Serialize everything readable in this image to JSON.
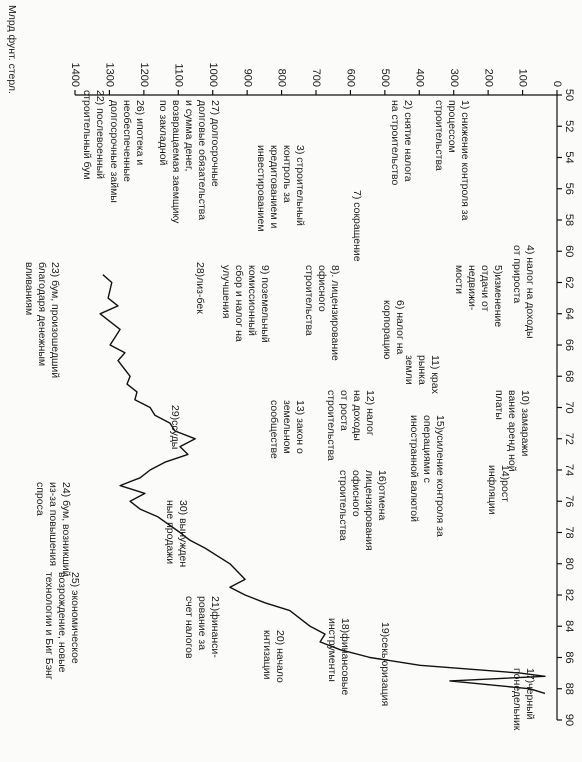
{
  "chart_data": {
    "type": "line",
    "y_axis_label": "Млрд фунт. стерл.",
    "x": [
      61.5,
      62,
      63,
      63.5,
      64,
      65,
      66,
      66.5,
      67,
      68,
      68.5,
      69,
      69.5,
      70,
      70.5,
      71,
      71.5,
      72,
      72.5,
      73,
      73.5,
      74,
      74.5,
      75,
      75.5,
      76,
      76.5,
      77,
      78,
      78.5,
      79,
      80,
      81,
      81.5,
      82,
      82.5,
      83,
      84,
      84.5,
      85,
      85.5,
      86,
      86.5,
      87,
      87.2,
      87.5,
      88,
      88.3
    ],
    "values": [
      1319,
      1293,
      1304,
      1275,
      1327,
      1269,
      1298,
      1255,
      1275,
      1240,
      1249,
      1220,
      1226,
      1182,
      1168,
      1124,
      1110,
      1051,
      1095,
      1072,
      1139,
      1182,
      1211,
      1269,
      1197,
      1240,
      1211,
      1159,
      1095,
      1066,
      1022,
      950,
      906,
      950,
      906,
      848,
      776,
      717,
      674,
      688,
      630,
      543,
      398,
      107,
      35,
      311,
      78,
      35
    ],
    "color": "#111111",
    "xlim": [
      50,
      90
    ],
    "xticks": [
      50,
      52,
      54,
      56,
      58,
      60,
      62,
      64,
      66,
      68,
      70,
      72,
      74,
      76,
      78,
      80,
      82,
      84,
      86,
      88,
      90
    ],
    "ylim": [
      0,
      1400
    ],
    "yticks": [
      0,
      100,
      200,
      300,
      400,
      500,
      600,
      700,
      800,
      900,
      1000,
      1100,
      1200,
      1300,
      1400
    ],
    "y_reversed": true,
    "annotations": [
      [
        "1) снижение контроля за",
        "процессом",
        "строительства"
      ],
      [
        "2) снятие налога",
        "на строительство"
      ],
      [
        "3) строительный",
        "контроль за",
        "кредитованием и",
        "инвестированием"
      ],
      [
        "4) налог на доходы",
        "от прироста"
      ],
      [
        "5)изменение",
        "отдачи от",
        "недвижи-",
        "мости"
      ],
      [
        "6) налог на",
        "корпорацию"
      ],
      [
        "7) сокращение"
      ],
      [
        "8). лицензирование",
        "офисного",
        "строительства"
      ],
      [
        "9) поземельный",
        "комиссионный",
        "сбор и налог на",
        "улучшения"
      ],
      [
        "10) замаражи",
        "вание аренд ной",
        "платы"
      ],
      [
        "11) крах",
        "рынка",
        "земли"
      ],
      [
        "12) налог",
        "на доходы",
        "от роста",
        "строительства"
      ],
      [
        "13) закон о",
        "земельном",
        "сообществе"
      ],
      [
        "14)рост",
        "инфляции"
      ],
      [
        "15)усиление контроля за",
        "операциями с",
        "иностранной валютой"
      ],
      [
        "16)отмена",
        "лицензирования",
        "офисного",
        "строительства"
      ],
      [
        "17)черный",
        "понедельник"
      ],
      [
        "18)финансовые",
        "инструменты"
      ],
      [
        "19)секьюризация"
      ],
      [
        "20) начало",
        "кнтизации"
      ],
      [
        "21)финанси-",
        "рование за",
        "счет налогов"
      ],
      [
        "22) послевоенный",
        "строительный бум"
      ],
      [
        "23) бум, произошедший",
        "благодаря денежным",
        "вливаниям"
      ],
      [
        "24) бум, возникший",
        "из-за повышения",
        "спроса"
      ],
      [
        "25) экономическое",
        "возрождение, новые",
        "технологии и Биг Бэнг"
      ],
      [
        "26) ипотека и",
        "необеспеченные",
        "долгосрочные займы"
      ],
      [
        "27) долгосрочные",
        "долговые обязательства",
        "и сумма денег,",
        "возвращаемая заемщику",
        "по закладной"
      ],
      [
        "28)лиз-бек"
      ],
      [
        "29)ссуды"
      ],
      [
        "30) вынужден",
        "ные продажи"
      ]
    ]
  }
}
